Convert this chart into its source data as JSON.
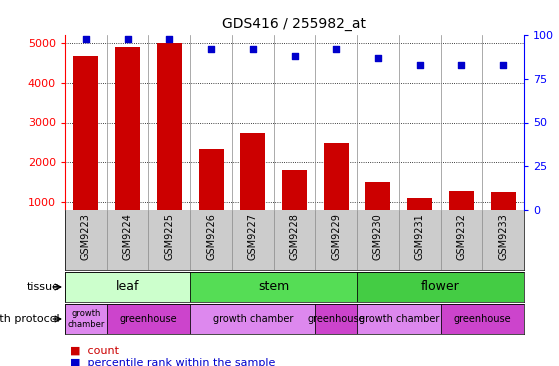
{
  "title": "GDS416 / 255982_at",
  "samples": [
    "GSM9223",
    "GSM9224",
    "GSM9225",
    "GSM9226",
    "GSM9227",
    "GSM9228",
    "GSM9229",
    "GSM9230",
    "GSM9231",
    "GSM9232",
    "GSM9233"
  ],
  "counts": [
    4680,
    4900,
    5000,
    2340,
    2730,
    1810,
    2490,
    1510,
    1100,
    1290,
    1250
  ],
  "percentiles": [
    98,
    98,
    98,
    92,
    92,
    88,
    92,
    87,
    83,
    83,
    83
  ],
  "ylim_left": [
    800,
    5200
  ],
  "ylim_right": [
    0,
    100
  ],
  "yticks_left": [
    1000,
    2000,
    3000,
    4000,
    5000
  ],
  "yticks_right": [
    0,
    25,
    50,
    75,
    100
  ],
  "bar_color": "#cc0000",
  "dot_color": "#0000cc",
  "tick_bg_color": "#cccccc",
  "tissue_groups": [
    {
      "label": "leaf",
      "start": 0,
      "end": 2,
      "color": "#ccffcc"
    },
    {
      "label": "stem",
      "start": 3,
      "end": 6,
      "color": "#55dd55"
    },
    {
      "label": "flower",
      "start": 7,
      "end": 10,
      "color": "#44cc44"
    }
  ],
  "protocol_groups": [
    {
      "label": "growth\nchamber",
      "start": 0,
      "end": 0,
      "color": "#dd88ee",
      "small": true
    },
    {
      "label": "greenhouse",
      "start": 1,
      "end": 2,
      "color": "#cc44cc",
      "small": false
    },
    {
      "label": "growth chamber",
      "start": 3,
      "end": 5,
      "color": "#dd88ee",
      "small": false
    },
    {
      "label": "greenhouse",
      "start": 6,
      "end": 6,
      "color": "#cc44cc",
      "small": false
    },
    {
      "label": "growth chamber",
      "start": 7,
      "end": 8,
      "color": "#dd88ee",
      "small": false
    },
    {
      "label": "greenhouse",
      "start": 9,
      "end": 10,
      "color": "#cc44cc",
      "small": false
    }
  ],
  "legend_count_color": "#cc0000",
  "legend_pct_color": "#0000cc",
  "legend_count_label": "count",
  "legend_pct_label": "percentile rank within the sample"
}
